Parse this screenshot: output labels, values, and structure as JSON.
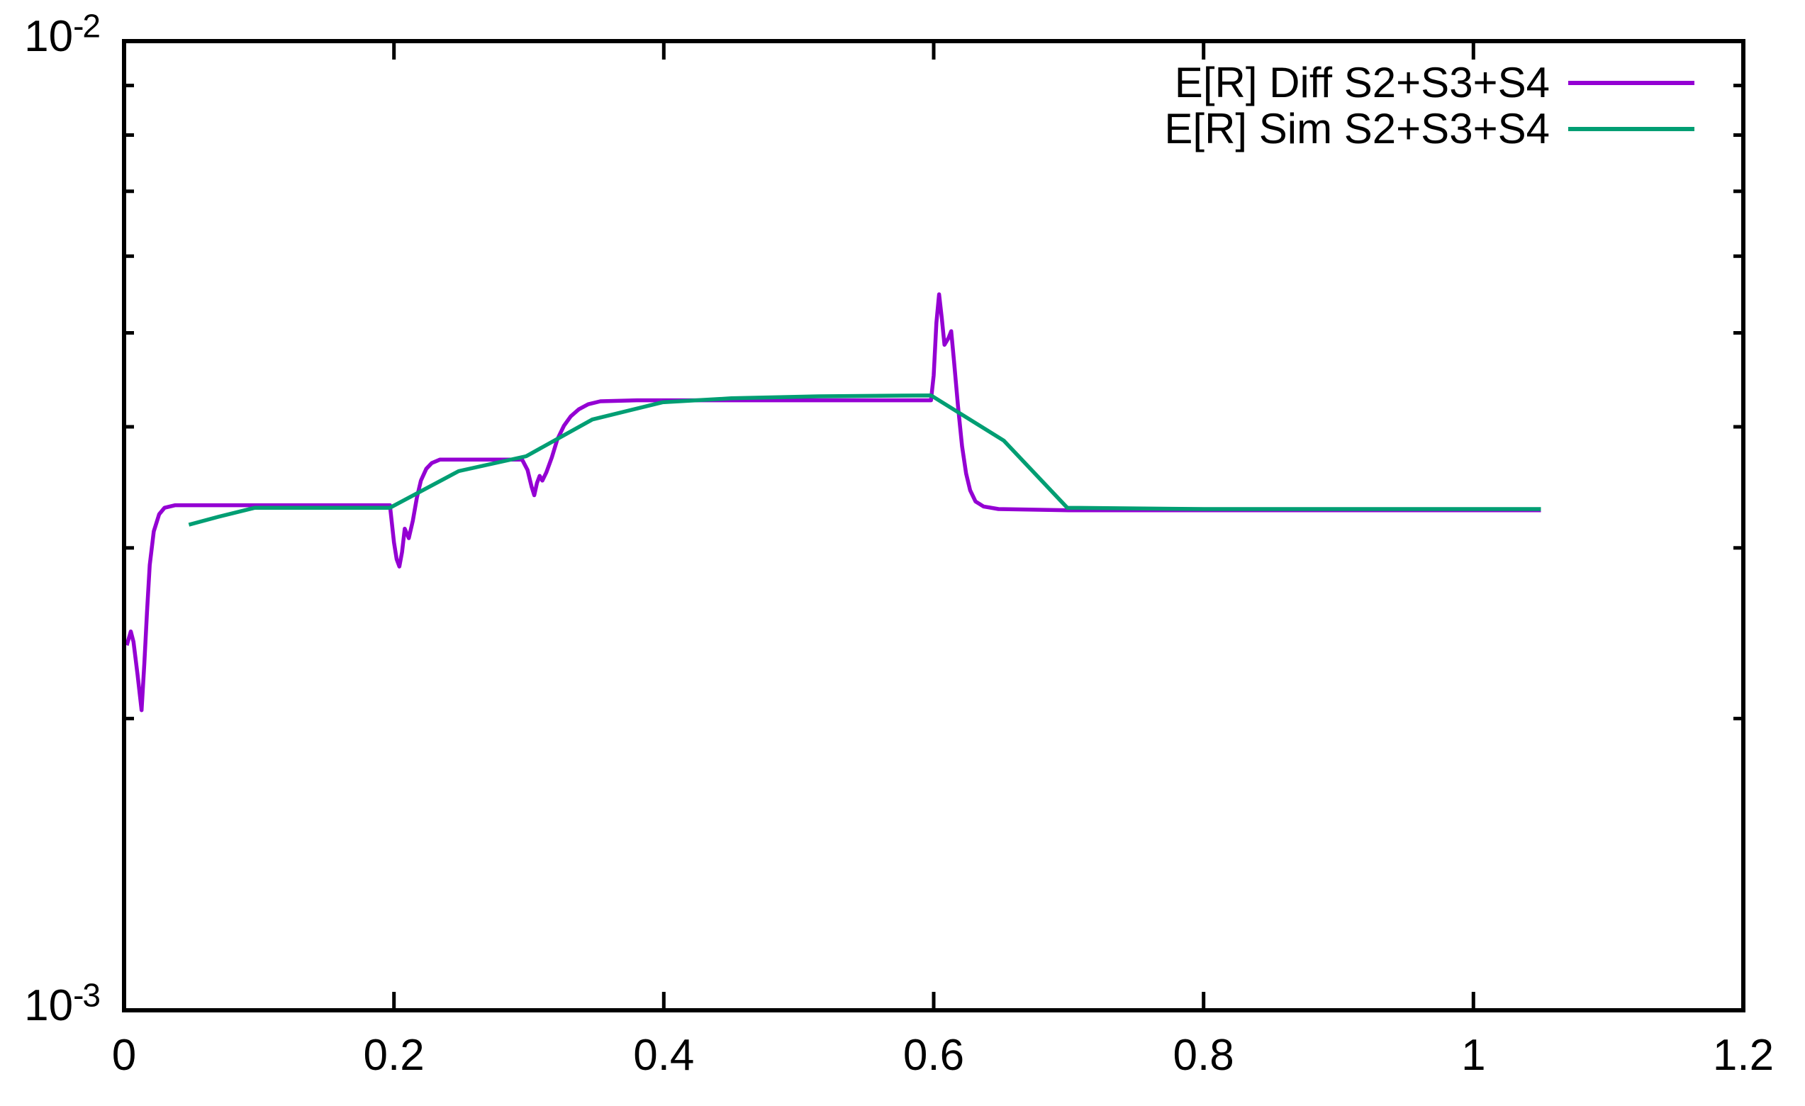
{
  "chart_data": {
    "type": "line",
    "title": "",
    "xlabel": "",
    "ylabel": "",
    "grid": false,
    "legend_position": "top-right-inside",
    "background_color": "#ffffff",
    "frame_color": "#000000",
    "text_color": "#000000",
    "x_axis": {
      "min": 0,
      "max": 1.2,
      "scale": "linear",
      "ticks": [
        0,
        0.2,
        0.4,
        0.6,
        0.8,
        1,
        1.2
      ],
      "tick_labels": [
        "0",
        "0.2",
        "0.4",
        "0.6",
        "0.8",
        "1",
        "1.2"
      ]
    },
    "y_axis": {
      "min": 0.001,
      "max": 0.01,
      "scale": "log",
      "major_ticks": [
        0.001,
        0.01
      ],
      "minor_ticks": [
        0.002,
        0.003,
        0.004,
        0.005,
        0.006,
        0.007,
        0.008,
        0.009
      ],
      "top_label": {
        "base": "10",
        "exp": "-2"
      },
      "bottom_label": {
        "base": "10",
        "exp": "-3"
      }
    },
    "series": [
      {
        "name": "E[R] Diff S2+S3+S4",
        "color": "#9400d3",
        "points": [
          [
            0.002,
            0.00238
          ],
          [
            0.005,
            0.00246
          ],
          [
            0.007,
            0.0024
          ],
          [
            0.01,
            0.00222
          ],
          [
            0.013,
            0.00204
          ],
          [
            0.015,
            0.00228
          ],
          [
            0.017,
            0.00258
          ],
          [
            0.019,
            0.00288
          ],
          [
            0.022,
            0.00312
          ],
          [
            0.026,
            0.00325
          ],
          [
            0.03,
            0.0033
          ],
          [
            0.038,
            0.00332
          ],
          [
            0.197,
            0.00332
          ],
          [
            0.2,
            0.00304
          ],
          [
            0.202,
            0.00292
          ],
          [
            0.204,
            0.00287
          ],
          [
            0.206,
            0.00297
          ],
          [
            0.208,
            0.00314
          ],
          [
            0.211,
            0.00307
          ],
          [
            0.214,
            0.0032
          ],
          [
            0.217,
            0.00338
          ],
          [
            0.22,
            0.00352
          ],
          [
            0.224,
            0.00362
          ],
          [
            0.228,
            0.00367
          ],
          [
            0.234,
            0.0037
          ],
          [
            0.295,
            0.0037
          ],
          [
            0.299,
            0.00361
          ],
          [
            0.302,
            0.00347
          ],
          [
            0.304,
            0.0034
          ],
          [
            0.306,
            0.0035
          ],
          [
            0.308,
            0.00356
          ],
          [
            0.31,
            0.00352
          ],
          [
            0.313,
            0.00359
          ],
          [
            0.317,
            0.00372
          ],
          [
            0.321,
            0.00388
          ],
          [
            0.326,
            0.00401
          ],
          [
            0.331,
            0.0041
          ],
          [
            0.337,
            0.00417
          ],
          [
            0.344,
            0.00422
          ],
          [
            0.353,
            0.00425
          ],
          [
            0.38,
            0.00426
          ],
          [
            0.598,
            0.00426
          ],
          [
            0.6,
            0.00452
          ],
          [
            0.602,
            0.00512
          ],
          [
            0.604,
            0.00548
          ],
          [
            0.606,
            0.00518
          ],
          [
            0.608,
            0.00486
          ],
          [
            0.611,
            0.00494
          ],
          [
            0.613,
            0.00502
          ],
          [
            0.615,
            0.00468
          ],
          [
            0.618,
            0.0042
          ],
          [
            0.621,
            0.00382
          ],
          [
            0.624,
            0.00358
          ],
          [
            0.627,
            0.00344
          ],
          [
            0.631,
            0.00335
          ],
          [
            0.637,
            0.00331
          ],
          [
            0.648,
            0.00329
          ],
          [
            0.7,
            0.00328
          ],
          [
            1.05,
            0.00328
          ]
        ]
      },
      {
        "name": "E[R] Sim S2+S3+S4",
        "color": "#009e73",
        "points": [
          [
            0.048,
            0.00317
          ],
          [
            0.07,
            0.00323
          ],
          [
            0.097,
            0.0033
          ],
          [
            0.197,
            0.0033
          ],
          [
            0.248,
            0.0036
          ],
          [
            0.298,
            0.00373
          ],
          [
            0.347,
            0.00407
          ],
          [
            0.399,
            0.00424
          ],
          [
            0.45,
            0.00428
          ],
          [
            0.515,
            0.0043
          ],
          [
            0.598,
            0.00431
          ],
          [
            0.652,
            0.00387
          ],
          [
            0.699,
            0.0033
          ],
          [
            0.8,
            0.00329
          ],
          [
            1.05,
            0.00329
          ]
        ]
      }
    ]
  }
}
